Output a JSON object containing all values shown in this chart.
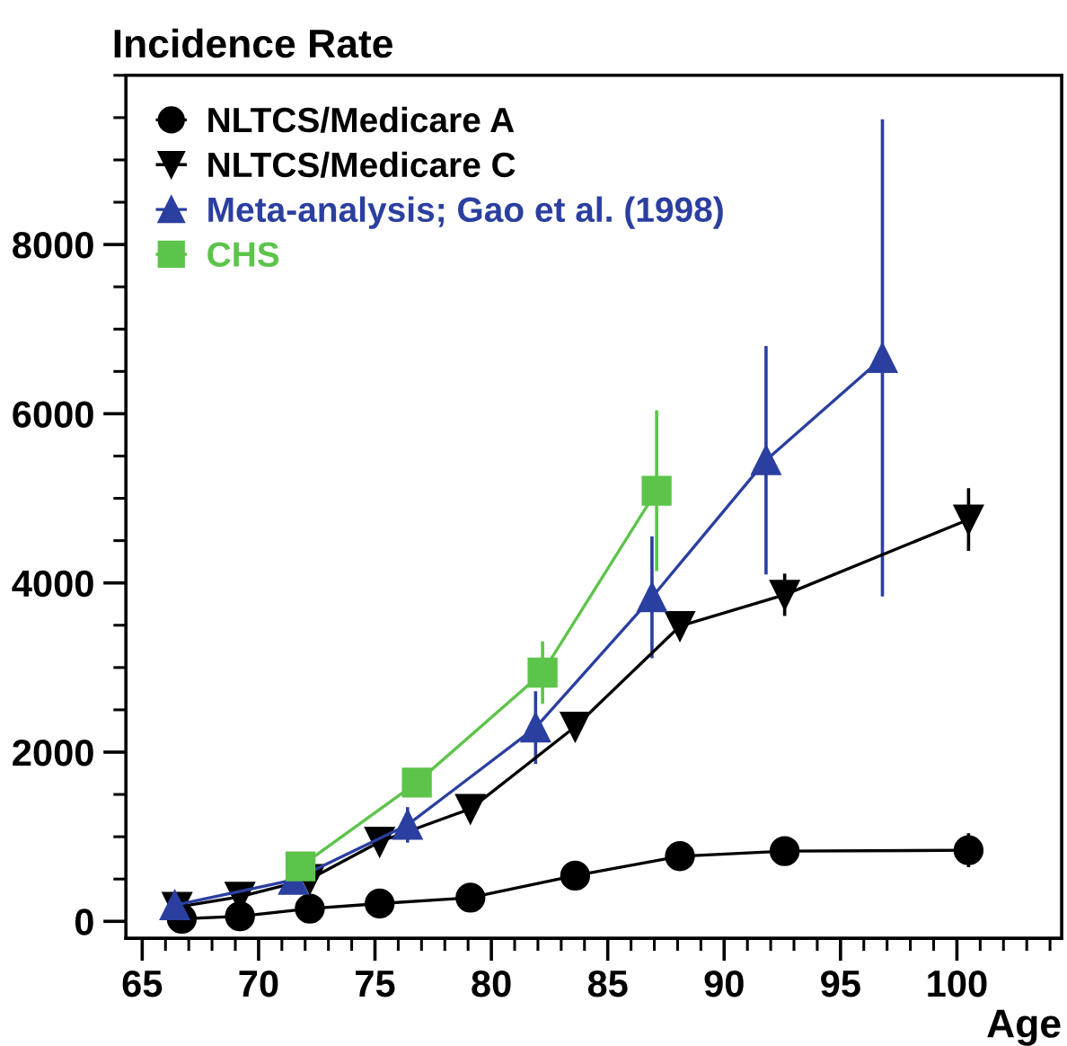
{
  "chart_data": {
    "type": "line",
    "ylabel": "Incidence Rate",
    "xlabel": "Age",
    "xlim": [
      64.3,
      104.5
    ],
    "ylim": [
      -200,
      10000
    ],
    "xticks": [
      65,
      70,
      75,
      80,
      85,
      90,
      95,
      100
    ],
    "yticks": [
      0,
      2000,
      4000,
      6000,
      8000
    ],
    "legend": "top left",
    "grid": false,
    "series": [
      {
        "name": "NLTCS/Medicare A",
        "color": "#000000",
        "marker": "circle",
        "x": [
          66.7,
          69.2,
          72.2,
          75.2,
          79.1,
          83.6,
          88.1,
          92.6,
          100.5
        ],
        "values": [
          30,
          60,
          150,
          210,
          280,
          540,
          770,
          830,
          840
        ],
        "errors": [
          null,
          null,
          null,
          null,
          null,
          null,
          null,
          null,
          200
        ]
      },
      {
        "name": "NLTCS/Medicare C",
        "color": "#000000",
        "marker": "triangle_down",
        "x": [
          66.5,
          69.2,
          72.2,
          75.2,
          79.1,
          83.6,
          88.1,
          92.6,
          100.5
        ],
        "values": [
          170,
          290,
          500,
          940,
          1330,
          2300,
          3490,
          3860,
          4750
        ],
        "errors": [
          null,
          null,
          null,
          null,
          null,
          null,
          null,
          250,
          370
        ]
      },
      {
        "name": "Meta-analysis; Gao et al. (1998)",
        "color": "#2b3fa0",
        "marker": "triangle",
        "x": [
          66.4,
          71.5,
          76.4,
          81.9,
          86.9,
          91.8,
          96.8
        ],
        "values": [
          190,
          490,
          1140,
          2290,
          3830,
          5450,
          6660
        ],
        "errors": [
          null,
          null,
          210,
          430,
          720,
          1350,
          2820
        ]
      },
      {
        "name": "CHS",
        "color": "#5cc44a",
        "marker": "square",
        "x": [
          71.8,
          76.8,
          82.2,
          87.1
        ],
        "values": [
          650,
          1640,
          2940,
          5090
        ],
        "errors": [
          null,
          120,
          370,
          950
        ]
      }
    ]
  }
}
